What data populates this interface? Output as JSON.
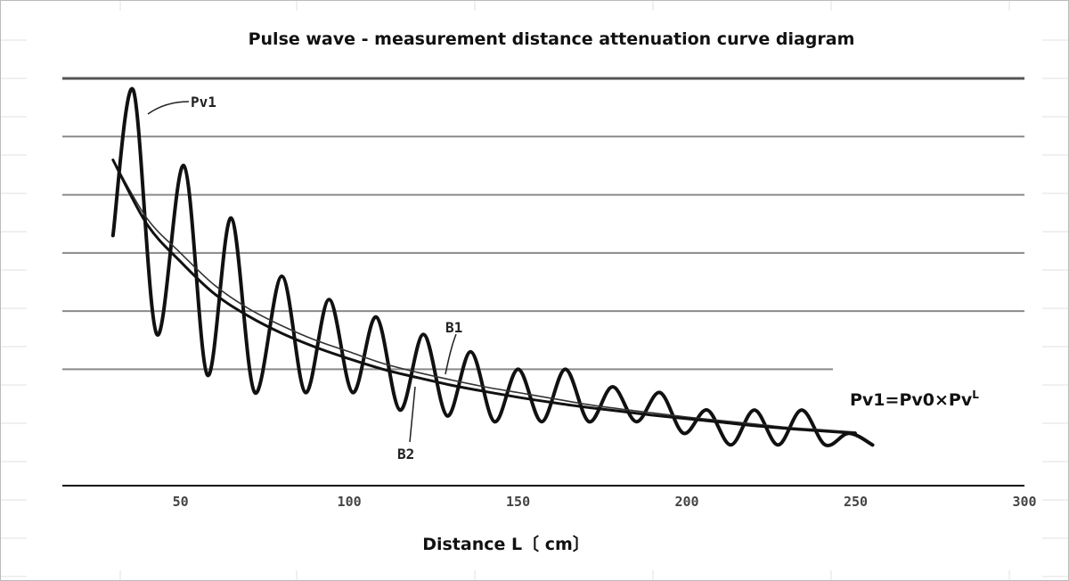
{
  "chart_data": {
    "type": "line",
    "title": "Pulse wave - measurement distance attenuation curve diagram",
    "xlabel": "Distance L〔 cm〕",
    "ylabel": "",
    "xlim": [
      15,
      300
    ],
    "ylim": [
      0,
      7
    ],
    "x_ticks": [
      "50",
      "100",
      "150",
      "200",
      "250",
      "300"
    ],
    "x_tick_values": [
      50,
      100,
      150,
      200,
      250,
      300
    ],
    "grid": true,
    "gridlines_y": [
      0,
      2,
      3,
      4,
      5,
      6,
      7
    ],
    "formula": {
      "base": "Pv1=Pv0",
      "op": "×",
      "term": "Pv",
      "exponent": "L"
    },
    "annotations": [
      "Pv1",
      "B1",
      "B2"
    ],
    "series": [
      {
        "name": "Pv1",
        "style": "thick oscillating",
        "x": [
          30,
          36,
          43,
          51,
          58,
          65,
          72,
          80,
          87,
          94,
          101,
          108,
          115,
          122,
          129,
          136,
          143,
          150,
          157,
          164,
          171,
          178,
          185,
          192,
          199,
          206,
          213,
          220,
          227,
          234,
          241,
          248,
          255
        ],
        "y": [
          4.3,
          6.8,
          2.6,
          5.5,
          1.9,
          4.6,
          1.6,
          3.6,
          1.6,
          3.2,
          1.6,
          2.9,
          1.3,
          2.6,
          1.2,
          2.3,
          1.1,
          2.0,
          1.1,
          2.0,
          1.1,
          1.7,
          1.1,
          1.6,
          0.9,
          1.3,
          0.7,
          1.3,
          0.7,
          1.3,
          0.7,
          0.9,
          0.7
        ]
      },
      {
        "name": "B1",
        "style": "thin",
        "x": [
          30,
          40,
          50,
          60,
          70,
          80,
          90,
          100,
          110,
          120,
          130,
          140,
          150,
          160,
          170,
          180,
          190,
          200,
          210,
          220,
          230,
          240,
          250
        ],
        "y": [
          5.6,
          4.6,
          4.0,
          3.45,
          3.05,
          2.75,
          2.5,
          2.3,
          2.1,
          1.95,
          1.82,
          1.7,
          1.6,
          1.5,
          1.4,
          1.32,
          1.25,
          1.18,
          1.12,
          1.06,
          1.0,
          0.96,
          0.92
        ]
      },
      {
        "name": "B2",
        "style": "thick",
        "x": [
          30,
          40,
          50,
          60,
          70,
          80,
          90,
          100,
          110,
          120,
          130,
          140,
          150,
          160,
          170,
          180,
          190,
          200,
          210,
          220,
          230,
          240,
          250
        ],
        "y": [
          5.6,
          4.5,
          3.85,
          3.3,
          2.92,
          2.62,
          2.38,
          2.18,
          2.0,
          1.86,
          1.73,
          1.62,
          1.52,
          1.43,
          1.35,
          1.28,
          1.21,
          1.15,
          1.09,
          1.03,
          0.98,
          0.94,
          0.9
        ]
      }
    ]
  }
}
